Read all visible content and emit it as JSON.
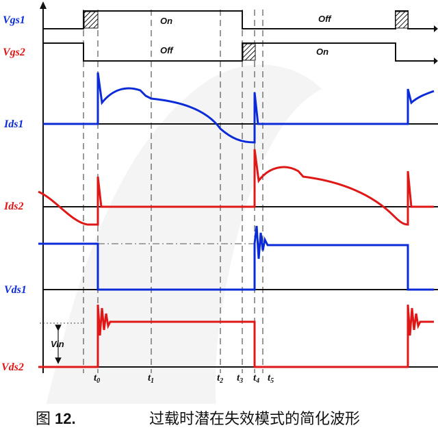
{
  "signals": {
    "vgs1": "Vgs1",
    "vgs2": "Vgs2",
    "ids1": "Ids1",
    "ids2": "Ids2",
    "vds1": "Vds1",
    "vds2": "Vds2"
  },
  "states": {
    "vgs1_on": "On",
    "vgs1_off": "Off",
    "vgs2_off": "Off",
    "vgs2_on": "On"
  },
  "vin_label": "Vin",
  "time_markers": [
    {
      "base": "t",
      "sub": "0"
    },
    {
      "base": "t",
      "sub": "1"
    },
    {
      "base": "t",
      "sub": "2"
    },
    {
      "base": "t",
      "sub": "3"
    },
    {
      "base": "t",
      "sub": "4"
    },
    {
      "base": "t",
      "sub": "5"
    }
  ],
  "caption": {
    "figure_word": "图",
    "figure_number": "12.",
    "text": "过载时潜在失效模式的简化波形"
  },
  "colors": {
    "blue": "#0b2bd9",
    "red": "#e01717",
    "black": "#111111"
  }
}
